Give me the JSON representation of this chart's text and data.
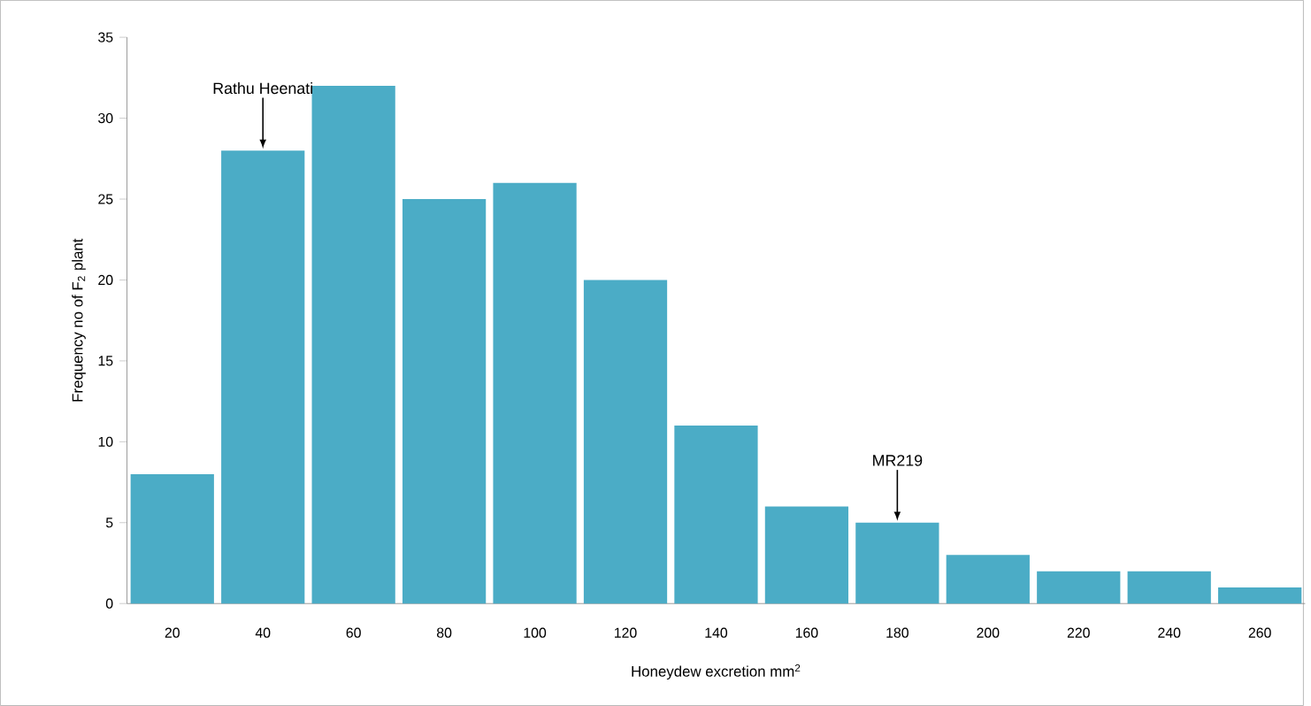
{
  "chart_data": {
    "type": "bar",
    "xlabel": "Honeydew excretion mm$^{2}$",
    "ylabel": "Frequency no of F$_{2}$ plant",
    "categories": [
      "20",
      "40",
      "60",
      "80",
      "100",
      "120",
      "140",
      "160",
      "180",
      "200",
      "220",
      "240",
      "260"
    ],
    "values": [
      8,
      28,
      32,
      25,
      26,
      20,
      11,
      6,
      5,
      3,
      2,
      2,
      1
    ],
    "color": "#4bacc6",
    "ylim": [
      0,
      35
    ],
    "yticks": [
      0,
      5,
      10,
      15,
      20,
      25,
      30,
      35
    ],
    "grid": false,
    "annotations": [
      {
        "text": "Rathu Heenati",
        "x": "40",
        "y": 28
      },
      {
        "text": "MR219",
        "x": "180",
        "y": 5
      }
    ]
  }
}
